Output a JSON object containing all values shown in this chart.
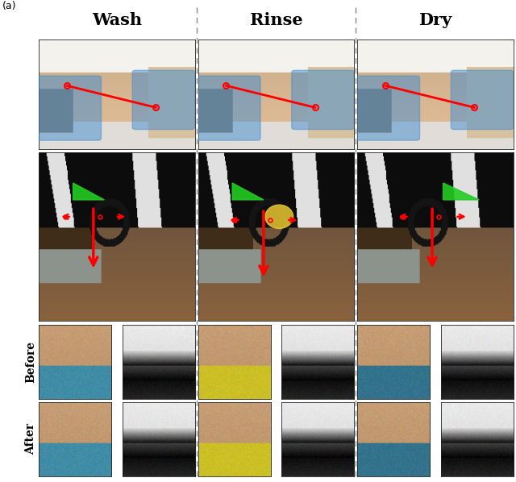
{
  "title_labels": [
    "Wash",
    "Rinse",
    "Dry"
  ],
  "row_labels": [
    "Before",
    "After"
  ],
  "title_fontsize": 15,
  "label_fontsize": 10,
  "figure_label": "(a)",
  "separator_color": "#888888",
  "bg_color": "#ffffff"
}
